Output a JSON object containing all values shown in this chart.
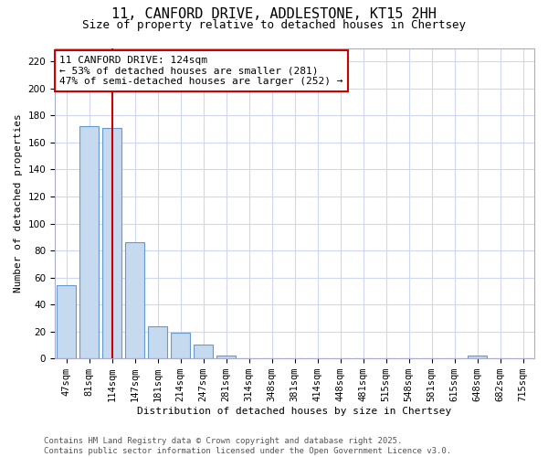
{
  "title": "11, CANFORD DRIVE, ADDLESTONE, KT15 2HH",
  "subtitle": "Size of property relative to detached houses in Chertsey",
  "xlabel": "Distribution of detached houses by size in Chertsey",
  "ylabel": "Number of detached properties",
  "bins": [
    "47sqm",
    "81sqm",
    "114sqm",
    "147sqm",
    "181sqm",
    "214sqm",
    "247sqm",
    "281sqm",
    "314sqm",
    "348sqm",
    "381sqm",
    "414sqm",
    "448sqm",
    "481sqm",
    "515sqm",
    "548sqm",
    "581sqm",
    "615sqm",
    "648sqm",
    "682sqm",
    "715sqm"
  ],
  "values": [
    54,
    172,
    171,
    86,
    24,
    19,
    10,
    2,
    0,
    0,
    0,
    0,
    0,
    0,
    0,
    0,
    0,
    0,
    2,
    0,
    0
  ],
  "bar_color": "#c5d9ef",
  "bar_edge_color": "#6699cc",
  "vline_x": 2,
  "vline_color": "#cc0000",
  "annotation_line1": "11 CANFORD DRIVE: 124sqm",
  "annotation_line2": "← 53% of detached houses are smaller (281)",
  "annotation_line3": "47% of semi-detached houses are larger (252) →",
  "annotation_box_color": "#ffffff",
  "annotation_box_edge": "#cc0000",
  "ylim": [
    0,
    230
  ],
  "yticks": [
    0,
    20,
    40,
    60,
    80,
    100,
    120,
    140,
    160,
    180,
    200,
    220
  ],
  "footnote": "Contains HM Land Registry data © Crown copyright and database right 2025.\nContains public sector information licensed under the Open Government Licence v3.0.",
  "bg_color": "#ffffff",
  "grid_color": "#d0d8f0",
  "title_fontsize": 11,
  "subtitle_fontsize": 9,
  "axis_label_fontsize": 8,
  "tick_fontsize": 7.5,
  "annotation_fontsize": 8,
  "footnote_fontsize": 6.5
}
